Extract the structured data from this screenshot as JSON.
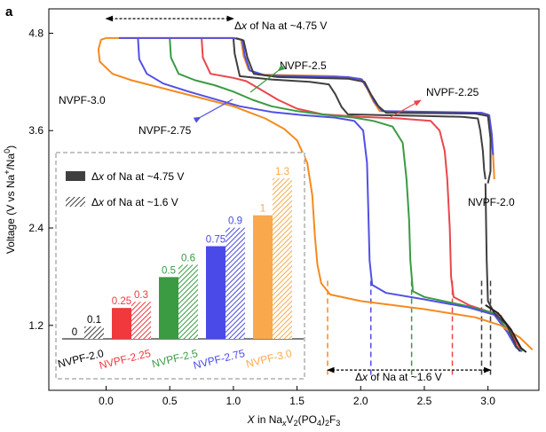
{
  "panel_label": "a",
  "chart_data": {
    "type": "line",
    "title": "",
    "xlabel": {
      "pre": "X",
      "mid": " in Na",
      "sub1": "x",
      "mid2": "V",
      "sub2": "2",
      "mid3": "(PO",
      "sub3": "4",
      "mid4": ")",
      "sub4": "2",
      "post": "F",
      "sub5": "3"
    },
    "ylabel": {
      "pre": "Voltage (V vs Na",
      "sup1": "+",
      "mid": "/Na",
      "sup2": "0",
      "post": ")"
    },
    "xlim": [
      -0.45,
      3.4
    ],
    "ylim": [
      0.4,
      5.1
    ],
    "x_ticks": [
      "0.0",
      "0.5",
      "1.0",
      "1.5",
      "2.0",
      "2.5",
      "3.0"
    ],
    "x_tick_values": [
      0.0,
      0.5,
      1.0,
      1.5,
      2.0,
      2.5,
      3.0
    ],
    "y_ticks": [
      "1.2",
      "2.4",
      "3.6",
      "4.8"
    ],
    "y_tick_values": [
      1.2,
      2.4,
      3.6,
      4.8
    ],
    "series": [
      {
        "name": "NVPF-2.0",
        "label": "NVPF-2.0",
        "color": "#3f3f3f",
        "points": [
          [
            1.0,
            4.74
          ],
          [
            1.01,
            4.55
          ],
          [
            1.05,
            4.27
          ],
          [
            1.3,
            4.23
          ],
          [
            1.6,
            4.2
          ],
          [
            1.75,
            4.17
          ],
          [
            1.8,
            4.05
          ],
          [
            1.85,
            3.89
          ],
          [
            1.9,
            3.8
          ],
          [
            2.2,
            3.79
          ],
          [
            2.5,
            3.78
          ],
          [
            2.8,
            3.77
          ],
          [
            2.92,
            3.75
          ],
          [
            2.94,
            3.6
          ],
          [
            2.96,
            3.35
          ],
          [
            2.97,
            3.12
          ],
          [
            2.98,
            3.0
          ]
        ]
      },
      {
        "name": "NVPF-2.25",
        "label": "NVPF-2.25",
        "color": "#e8474c",
        "points": [
          [
            0.75,
            4.74
          ],
          [
            0.76,
            4.5
          ],
          [
            0.82,
            4.3
          ],
          [
            1.0,
            4.25
          ],
          [
            1.1,
            4.21
          ],
          [
            1.2,
            4.12
          ],
          [
            1.35,
            3.98
          ],
          [
            1.5,
            3.87
          ],
          [
            1.7,
            3.8
          ],
          [
            2.0,
            3.77
          ],
          [
            2.3,
            3.75
          ],
          [
            2.55,
            3.72
          ],
          [
            2.62,
            3.6
          ],
          [
            2.66,
            3.35
          ],
          [
            2.68,
            3.0
          ],
          [
            2.7,
            2.4
          ],
          [
            2.71,
            1.8
          ],
          [
            2.73,
            1.55
          ],
          [
            2.85,
            1.45
          ],
          [
            3.1,
            1.32
          ],
          [
            3.22,
            1.0
          ],
          [
            3.26,
            0.9
          ]
        ]
      },
      {
        "name": "NVPF-2.5",
        "label": "NVPF-2.5",
        "color": "#3a9b43",
        "points": [
          [
            0.5,
            4.74
          ],
          [
            0.51,
            4.5
          ],
          [
            0.57,
            4.3
          ],
          [
            0.7,
            4.22
          ],
          [
            0.85,
            4.16
          ],
          [
            1.0,
            4.08
          ],
          [
            1.15,
            3.98
          ],
          [
            1.3,
            3.9
          ],
          [
            1.5,
            3.84
          ],
          [
            1.75,
            3.79
          ],
          [
            1.95,
            3.76
          ],
          [
            2.1,
            3.72
          ],
          [
            2.25,
            3.65
          ],
          [
            2.33,
            3.45
          ],
          [
            2.36,
            3.0
          ],
          [
            2.38,
            2.5
          ],
          [
            2.39,
            2.0
          ],
          [
            2.41,
            1.62
          ],
          [
            2.5,
            1.55
          ],
          [
            2.8,
            1.45
          ],
          [
            3.05,
            1.35
          ],
          [
            3.15,
            1.15
          ],
          [
            3.22,
            0.93
          ],
          [
            3.27,
            0.88
          ]
        ]
      },
      {
        "name": "NVPF-2.75",
        "label": "NVPF-2.75",
        "color": "#5150e4",
        "points": [
          [
            0.25,
            4.74
          ],
          [
            0.26,
            4.48
          ],
          [
            0.32,
            4.3
          ],
          [
            0.45,
            4.18
          ],
          [
            0.65,
            4.08
          ],
          [
            0.85,
            3.99
          ],
          [
            1.05,
            3.9
          ],
          [
            1.3,
            3.83
          ],
          [
            1.55,
            3.79
          ],
          [
            1.8,
            3.76
          ],
          [
            1.95,
            3.72
          ],
          [
            2.02,
            3.6
          ],
          [
            2.05,
            3.2
          ],
          [
            2.06,
            2.6
          ],
          [
            2.07,
            2.0
          ],
          [
            2.09,
            1.7
          ],
          [
            2.2,
            1.6
          ],
          [
            2.5,
            1.52
          ],
          [
            2.85,
            1.42
          ],
          [
            3.05,
            1.33
          ],
          [
            3.15,
            1.12
          ],
          [
            3.22,
            0.93
          ],
          [
            3.26,
            0.88
          ]
        ]
      },
      {
        "name": "NVPF-3.0",
        "label": "NVPF-3.0",
        "color": "#f58a1f",
        "points": [
          [
            0.0,
            4.74
          ],
          [
            -0.04,
            4.72
          ],
          [
            -0.06,
            4.6
          ],
          [
            -0.05,
            4.45
          ],
          [
            0.05,
            4.3
          ],
          [
            0.2,
            4.22
          ],
          [
            0.5,
            4.1
          ],
          [
            0.8,
            3.98
          ],
          [
            1.0,
            3.9
          ],
          [
            1.1,
            3.84
          ],
          [
            1.25,
            3.75
          ],
          [
            1.4,
            3.62
          ],
          [
            1.5,
            3.48
          ],
          [
            1.58,
            3.2
          ],
          [
            1.62,
            2.8
          ],
          [
            1.64,
            2.3
          ],
          [
            1.66,
            1.95
          ],
          [
            1.69,
            1.72
          ],
          [
            1.76,
            1.58
          ],
          [
            2.0,
            1.5
          ],
          [
            2.5,
            1.4
          ],
          [
            2.9,
            1.3
          ],
          [
            3.1,
            1.2
          ],
          [
            3.25,
            1.05
          ],
          [
            3.35,
            0.9
          ]
        ]
      },
      {
        "name": "NVPF-charge-top",
        "label": "",
        "color": "#f58a1f",
        "points": [
          [
            0.0,
            4.74
          ],
          [
            0.5,
            4.74
          ],
          [
            0.75,
            4.74
          ],
          [
            1.0,
            4.74
          ],
          [
            1.06,
            4.72
          ],
          [
            1.08,
            4.52
          ],
          [
            1.12,
            4.35
          ],
          [
            1.2,
            4.29
          ],
          [
            1.8,
            4.27
          ],
          [
            2.0,
            4.24
          ],
          [
            2.05,
            4.12
          ],
          [
            2.1,
            3.96
          ],
          [
            2.15,
            3.84
          ],
          [
            2.5,
            3.83
          ],
          [
            2.9,
            3.82
          ],
          [
            3.0,
            3.8
          ],
          [
            3.02,
            3.6
          ],
          [
            3.04,
            3.3
          ],
          [
            3.05,
            3.0
          ]
        ]
      },
      {
        "name": "NVPF-charge-blue",
        "label": "",
        "color": "#5150e4",
        "points": [
          [
            0.1,
            4.74
          ],
          [
            1.0,
            4.74
          ],
          [
            1.07,
            4.72
          ],
          [
            1.09,
            4.52
          ],
          [
            1.13,
            4.34
          ],
          [
            1.25,
            4.28
          ],
          [
            1.9,
            4.26
          ],
          [
            2.01,
            4.23
          ],
          [
            2.06,
            4.1
          ],
          [
            2.11,
            3.95
          ],
          [
            2.17,
            3.84
          ],
          [
            2.6,
            3.83
          ],
          [
            2.95,
            3.82
          ],
          [
            3.01,
            3.79
          ],
          [
            3.03,
            3.55
          ],
          [
            3.04,
            3.3
          ]
        ]
      },
      {
        "name": "NVPF-charge-grey",
        "label": "",
        "color": "#3f3f3f",
        "points": [
          [
            1.02,
            4.74
          ],
          [
            1.08,
            4.71
          ],
          [
            1.11,
            4.5
          ],
          [
            1.16,
            4.3
          ],
          [
            1.35,
            4.26
          ],
          [
            1.9,
            4.24
          ],
          [
            2.03,
            4.2
          ],
          [
            2.08,
            4.05
          ],
          [
            2.14,
            3.9
          ],
          [
            2.2,
            3.82
          ],
          [
            2.9,
            3.81
          ],
          [
            3.0,
            3.78
          ],
          [
            3.02,
            3.5
          ],
          [
            3.02,
            3.1
          ],
          [
            3.0,
            2.95
          ]
        ]
      },
      {
        "name": "NVPF-tail-grey",
        "label": "",
        "color": "#3f3f3f",
        "points": [
          [
            2.98,
            2.95
          ],
          [
            2.99,
            2.0
          ],
          [
            3.0,
            1.5
          ],
          [
            3.05,
            1.35
          ],
          [
            3.15,
            1.2
          ],
          [
            3.22,
            0.95
          ],
          [
            3.25,
            0.88
          ]
        ]
      },
      {
        "name": "NVPF-tail-black",
        "label": "",
        "color": "#222222",
        "points": [
          [
            2.98,
            1.45
          ],
          [
            3.08,
            1.35
          ],
          [
            3.18,
            1.15
          ],
          [
            3.26,
            0.92
          ],
          [
            3.3,
            0.87
          ]
        ]
      }
    ],
    "dashed_markers": [
      {
        "x": 1.74,
        "color": "#f58a1f"
      },
      {
        "x": 2.08,
        "color": "#5150e4"
      },
      {
        "x": 2.4,
        "color": "#3a9b43"
      },
      {
        "x": 2.72,
        "color": "#e8474c"
      },
      {
        "x": 2.95,
        "color": "#3f3f3f"
      },
      {
        "x": 3.02,
        "color": "#3f3f3f"
      }
    ],
    "annotations": {
      "dx_high": {
        "pre": "Δ",
        "var": "x",
        "post": " of Na at ~4.75 V",
        "x_from": 0.0,
        "x_to": 1.0,
        "y": 4.98
      },
      "dx_low": {
        "pre": "Δ",
        "var": "x",
        "post": " of Na at ~1.6 V",
        "x_from": 1.74,
        "x_to": 3.02,
        "y": 0.65
      }
    },
    "curve_labels": [
      {
        "text": "NVPF-3.0",
        "color": "#f58a1f"
      },
      {
        "text": "NVPF-2.75",
        "color": "#5150e4"
      },
      {
        "text": "NVPF-2.5",
        "color": "#3a9b43"
      },
      {
        "text": "NVPF-2.25",
        "color": "#e8474c"
      },
      {
        "text": "NVPF-2.0",
        "color": "#000000"
      }
    ],
    "inset": {
      "type": "bar",
      "legend": [
        {
          "pre": "Δ",
          "var": "x",
          "post": " of Na at ~4.75 V",
          "style": "solid"
        },
        {
          "pre": "Δ",
          "var": "x",
          "post": " of Na at ~1.6 V",
          "style": "hatched"
        }
      ],
      "ylim": [
        0,
        1.45
      ],
      "categories": [
        "NVPF-2.0",
        "NVPF-2.25",
        "NVPF-2.5",
        "NVPF-2.75",
        "NVPF-3.0"
      ],
      "colors": [
        "#3f3f3f",
        "#f0383d",
        "#3a9b43",
        "#4a4ae8",
        "#f9a94b"
      ],
      "solid_values": [
        0,
        0.25,
        0.5,
        0.75,
        1
      ],
      "solid_labels": [
        "0",
        "0.25",
        "0.5",
        "0.75",
        "1"
      ],
      "hatched_values": [
        0.1,
        0.3,
        0.6,
        0.9,
        1.3
      ],
      "hatched_labels": [
        "0.1",
        "0.3",
        "0.6",
        "0.9",
        "1.3"
      ]
    }
  }
}
